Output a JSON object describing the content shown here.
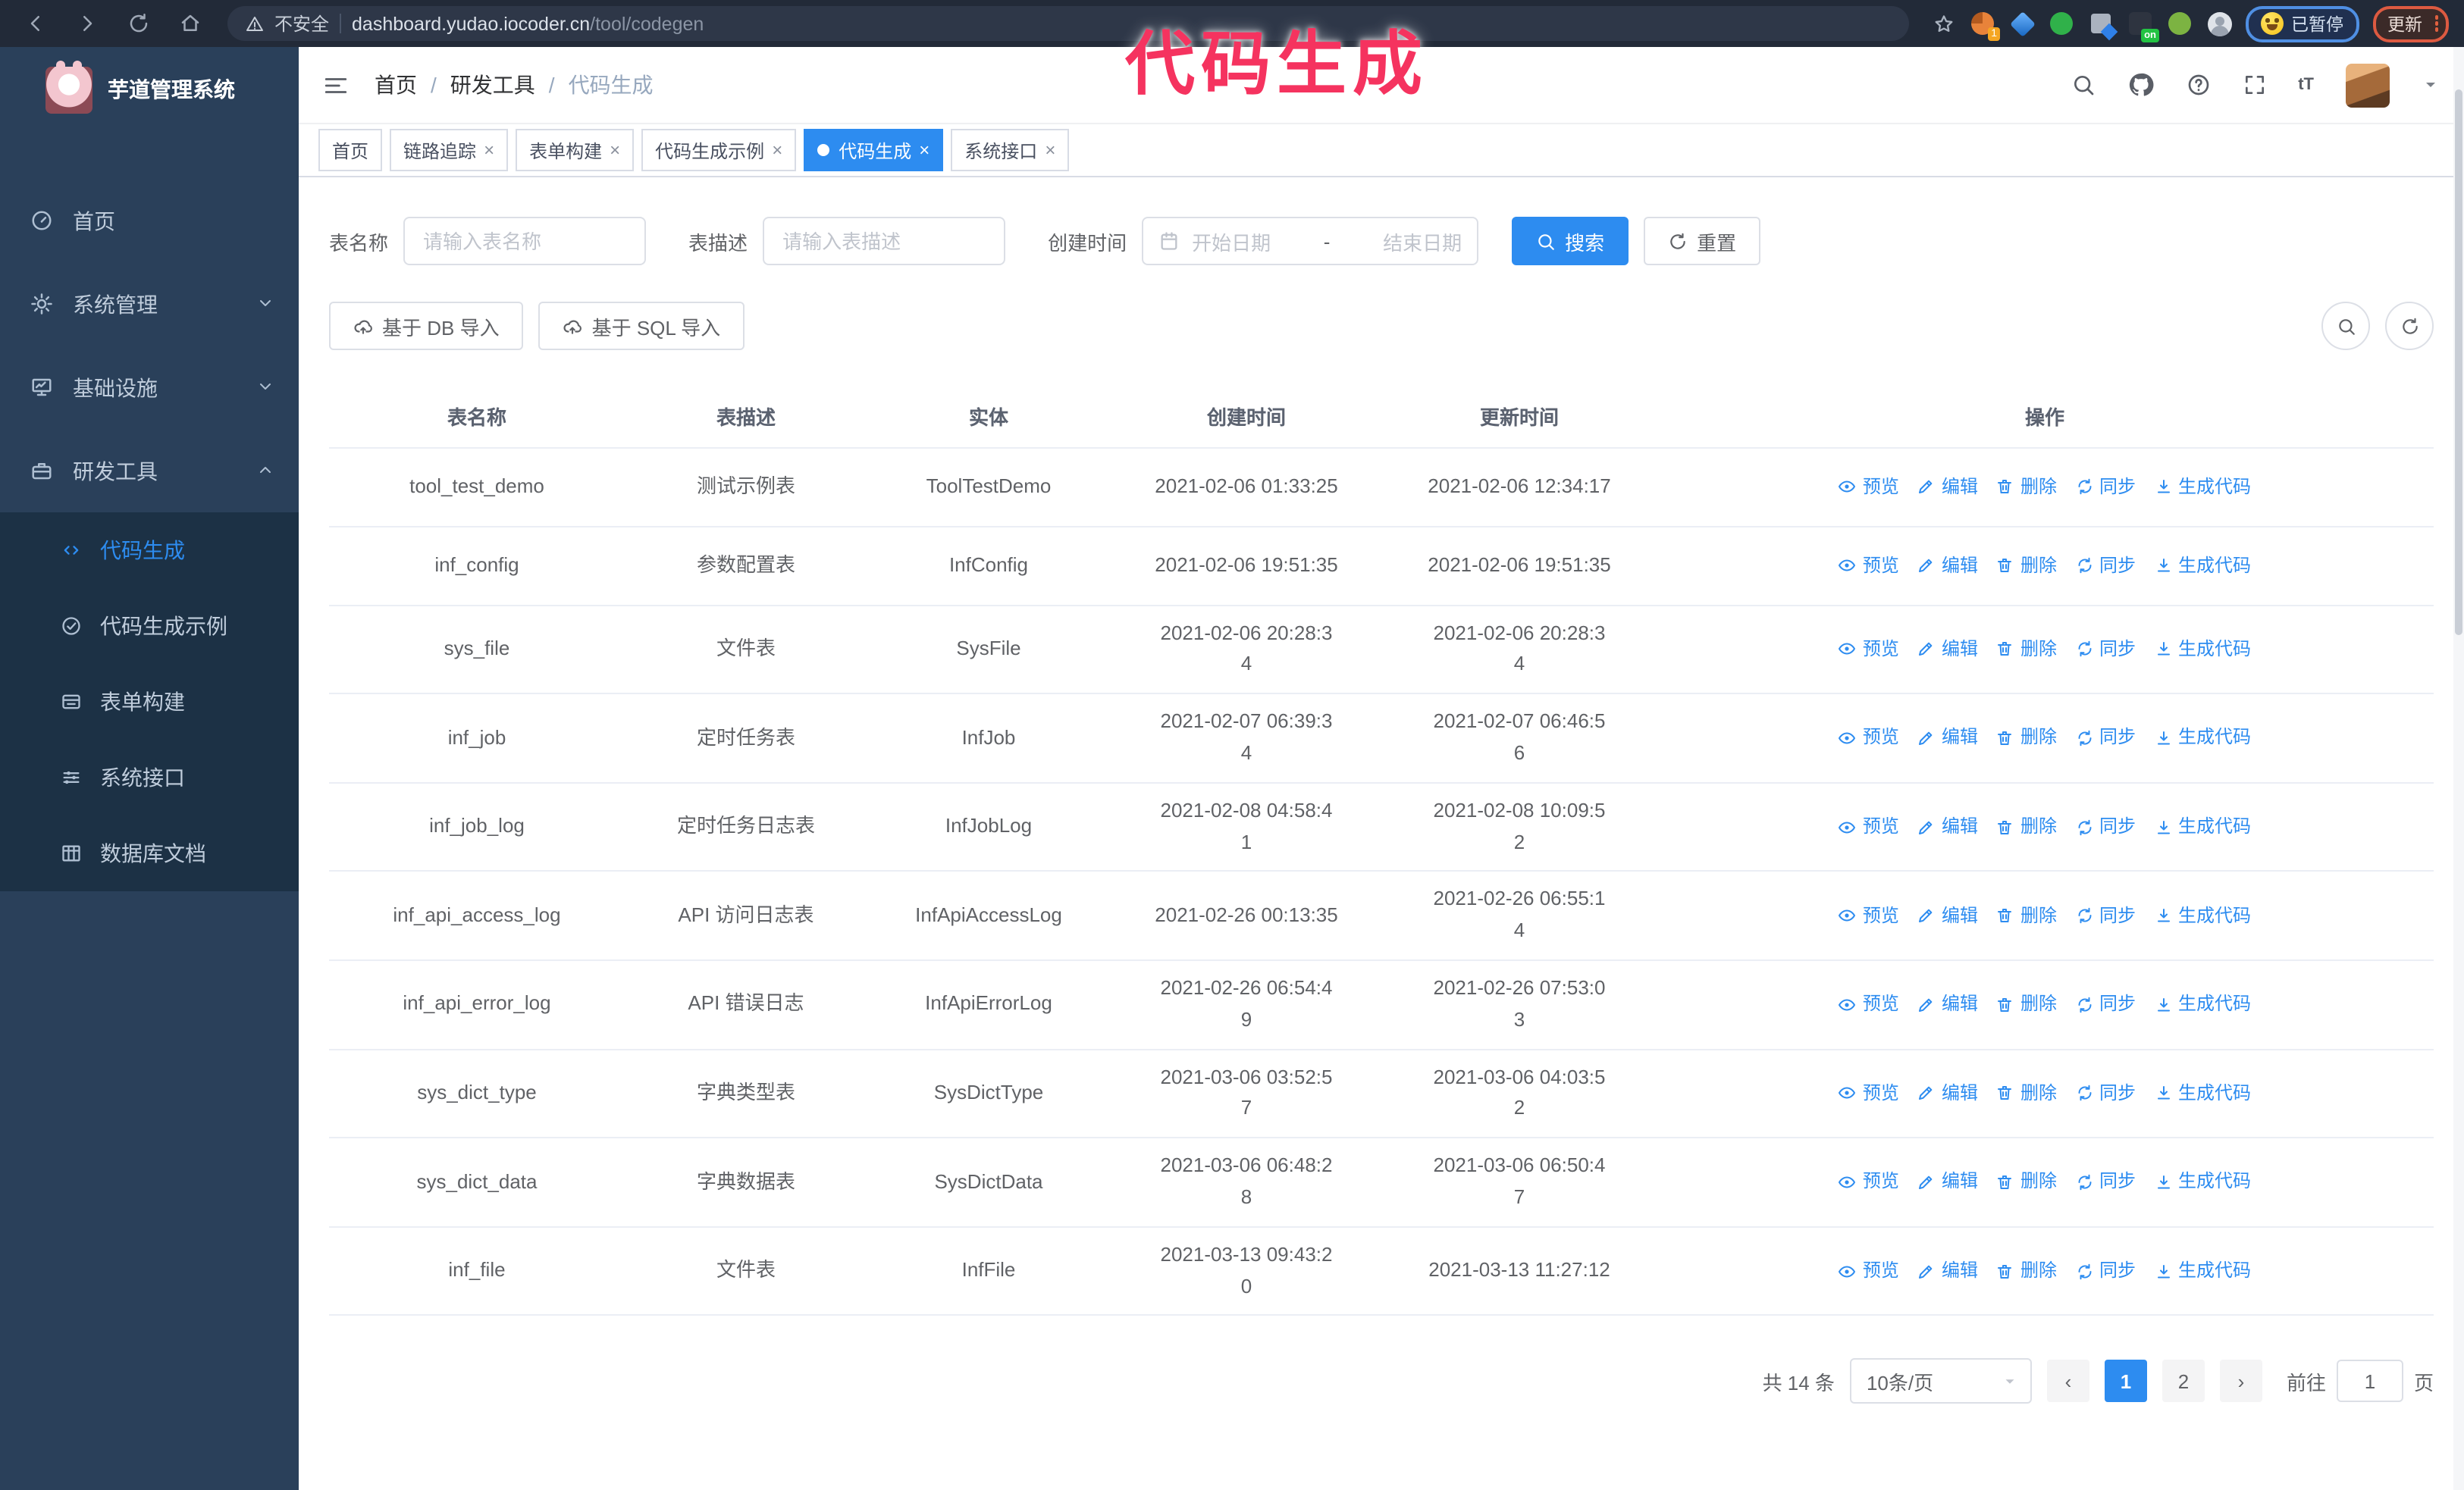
{
  "browser": {
    "security_label": "不安全",
    "url_host": "dashboard.yudao.iocoder.cn",
    "url_path": "/tool/codegen",
    "extension_badge": "1",
    "extension_on_badge": "on",
    "paused_badge": "已暂停",
    "update_badge": "更新"
  },
  "annotation": {
    "text": "代码生成"
  },
  "sidebar": {
    "logo_title": "芋道管理系统",
    "menu": [
      {
        "label": "首页",
        "icon": "dashboard-icon",
        "expandable": false,
        "expanded": false
      },
      {
        "label": "系统管理",
        "icon": "gear-icon",
        "expandable": true,
        "expanded": false
      },
      {
        "label": "基础设施",
        "icon": "infra-icon",
        "expandable": true,
        "expanded": false
      },
      {
        "label": "研发工具",
        "icon": "toolbox-icon",
        "expandable": true,
        "expanded": true
      }
    ],
    "submenu": [
      {
        "label": "代码生成",
        "icon": "code-icon",
        "active": true
      },
      {
        "label": "代码生成示例",
        "icon": "example-icon",
        "active": false
      },
      {
        "label": "表单构建",
        "icon": "form-icon",
        "active": false
      },
      {
        "label": "系统接口",
        "icon": "api-icon",
        "active": false
      },
      {
        "label": "数据库文档",
        "icon": "database-doc-icon",
        "active": false
      }
    ]
  },
  "navbar": {
    "breadcrumb": [
      "首页",
      "研发工具",
      "代码生成"
    ],
    "font_size_glyph": "tT"
  },
  "tags": [
    {
      "label": "首页",
      "closable": false,
      "active": false
    },
    {
      "label": "链路追踪",
      "closable": true,
      "active": false
    },
    {
      "label": "表单构建",
      "closable": true,
      "active": false
    },
    {
      "label": "代码生成示例",
      "closable": true,
      "active": false
    },
    {
      "label": "代码生成",
      "closable": true,
      "active": true
    },
    {
      "label": "系统接口",
      "closable": true,
      "active": false
    }
  ],
  "search_form": {
    "table_name_label": "表名称",
    "table_name_placeholder": "请输入表名称",
    "table_desc_label": "表描述",
    "table_desc_placeholder": "请输入表描述",
    "create_time_label": "创建时间",
    "date_start_placeholder": "开始日期",
    "date_separator": "-",
    "date_end_placeholder": "结束日期",
    "search_button": "搜索",
    "reset_button": "重置"
  },
  "toolbar": {
    "import_db_button": "基于 DB 导入",
    "import_sql_button": "基于 SQL 导入"
  },
  "table": {
    "columns": [
      "表名称",
      "表描述",
      "实体",
      "创建时间",
      "更新时间",
      "操作"
    ],
    "actions": [
      {
        "name": "preview-action",
        "label": "预览",
        "icon": "eye-icon"
      },
      {
        "name": "edit-action",
        "label": "编辑",
        "icon": "edit-icon"
      },
      {
        "name": "delete-action",
        "label": "删除",
        "icon": "delete-icon"
      },
      {
        "name": "sync-action",
        "label": "同步",
        "icon": "sync-icon"
      },
      {
        "name": "generate-code-action",
        "label": "生成代码",
        "icon": "download-icon"
      }
    ],
    "rows": [
      {
        "name": "tool_test_demo",
        "desc": "测试示例表",
        "entity": "ToolTestDemo",
        "created": "2021-02-06 01:33:25",
        "updated": "2021-02-06 12:34:17",
        "created_wrap": false,
        "updated_wrap": false
      },
      {
        "name": "inf_config",
        "desc": "参数配置表",
        "entity": "InfConfig",
        "created": "2021-02-06 19:51:35",
        "updated": "2021-02-06 19:51:35",
        "created_wrap": false,
        "updated_wrap": false
      },
      {
        "name": "sys_file",
        "desc": "文件表",
        "entity": "SysFile",
        "created": "2021-02-06 20:28:34",
        "updated": "2021-02-06 20:28:34",
        "created_wrap": true,
        "updated_wrap": true
      },
      {
        "name": "inf_job",
        "desc": "定时任务表",
        "entity": "InfJob",
        "created": "2021-02-07 06:39:34",
        "updated": "2021-02-07 06:46:56",
        "created_wrap": true,
        "updated_wrap": true
      },
      {
        "name": "inf_job_log",
        "desc": "定时任务日志表",
        "entity": "InfJobLog",
        "created": "2021-02-08 04:58:41",
        "updated": "2021-02-08 10:09:52",
        "created_wrap": true,
        "updated_wrap": true
      },
      {
        "name": "inf_api_access_log",
        "desc": "API 访问日志表",
        "entity": "InfApiAccessLog",
        "created": "2021-02-26 00:13:35",
        "updated": "2021-02-26 06:55:14",
        "created_wrap": false,
        "updated_wrap": true
      },
      {
        "name": "inf_api_error_log",
        "desc": "API 错误日志",
        "entity": "InfApiErrorLog",
        "created": "2021-02-26 06:54:49",
        "updated": "2021-02-26 07:53:03",
        "created_wrap": true,
        "updated_wrap": true
      },
      {
        "name": "sys_dict_type",
        "desc": "字典类型表",
        "entity": "SysDictType",
        "created": "2021-03-06 03:52:57",
        "updated": "2021-03-06 04:03:52",
        "created_wrap": true,
        "updated_wrap": true
      },
      {
        "name": "sys_dict_data",
        "desc": "字典数据表",
        "entity": "SysDictData",
        "created": "2021-03-06 06:48:28",
        "updated": "2021-03-06 06:50:47",
        "created_wrap": true,
        "updated_wrap": true
      },
      {
        "name": "inf_file",
        "desc": "文件表",
        "entity": "InfFile",
        "created": "2021-03-13 09:43:20",
        "updated": "2021-03-13 11:27:12",
        "created_wrap": true,
        "updated_wrap": false
      }
    ]
  },
  "pagination": {
    "total_text": "共 14 条",
    "page_size": "10条/页",
    "pages": [
      {
        "label": "1",
        "active": true
      },
      {
        "label": "2",
        "active": false
      }
    ],
    "goto_label": "前往",
    "goto_value": "1",
    "goto_suffix": "页"
  },
  "ui": {
    "close_glyph": "×",
    "breadcrumb_separator": "/",
    "prev_glyph": "‹",
    "next_glyph": "›",
    "question_glyph": "?"
  },
  "colors": {
    "accent_blue": "#2d8cf0",
    "sidebar_bg": "#2a405a",
    "submenu_bg": "#1c3145",
    "annotation_pink": "#f5335f",
    "chrome_bg": "#222a38"
  }
}
